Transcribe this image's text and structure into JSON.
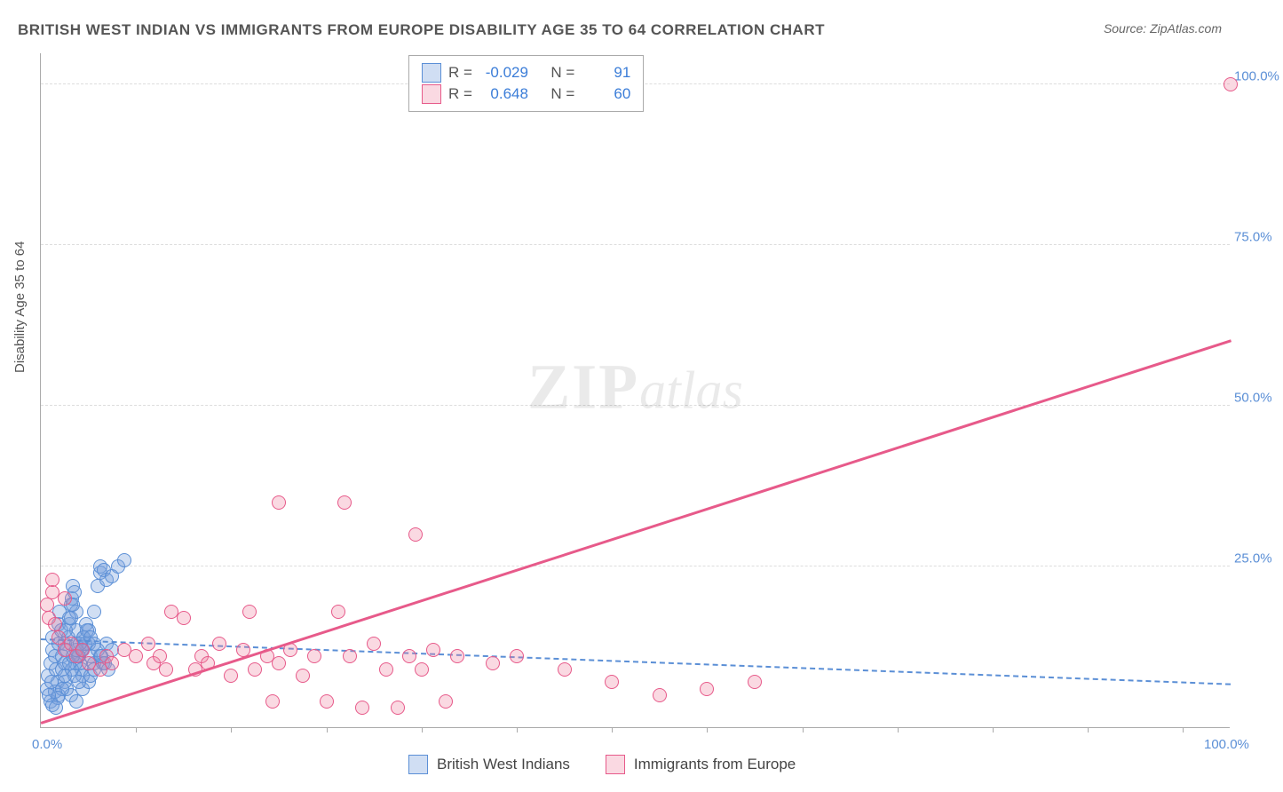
{
  "title": "BRITISH WEST INDIAN VS IMMIGRANTS FROM EUROPE DISABILITY AGE 35 TO 64 CORRELATION CHART",
  "source": "Source: ZipAtlas.com",
  "ylabel": "Disability Age 35 to 64",
  "watermark_zip": "ZIP",
  "watermark_atlas": "atlas",
  "chart": {
    "type": "scatter",
    "xlim": [
      0,
      100
    ],
    "ylim": [
      0,
      105
    ],
    "yticks": [
      {
        "v": 25,
        "label": "25.0%"
      },
      {
        "v": 50,
        "label": "50.0%"
      },
      {
        "v": 75,
        "label": "75.0%"
      },
      {
        "v": 100,
        "label": "100.0%"
      }
    ],
    "xticks": [
      {
        "v": 0,
        "label": "0.0%"
      },
      {
        "v": 100,
        "label": "100.0%"
      }
    ],
    "xminor": [
      8,
      16,
      24,
      32,
      40,
      48,
      56,
      64,
      72,
      80,
      88,
      96
    ],
    "grid_color": "#dddddd",
    "background": "#ffffff",
    "series": [
      {
        "name": "British West Indians",
        "color_fill": "rgba(120,160,220,0.35)",
        "color_stroke": "#5b8fd6",
        "marker_r": 8,
        "R": "-0.029",
        "N": "91",
        "regression": {
          "x1": 0,
          "y1": 13.5,
          "x2": 100,
          "y2": 6.5,
          "dashed": true,
          "color": "#5b8fd6"
        },
        "points": [
          [
            0.5,
            6
          ],
          [
            0.6,
            8
          ],
          [
            0.8,
            10
          ],
          [
            1,
            12
          ],
          [
            1,
            14
          ],
          [
            1.2,
            11
          ],
          [
            1.3,
            9
          ],
          [
            1.4,
            7
          ],
          [
            1.5,
            13
          ],
          [
            1.5,
            16
          ],
          [
            1.6,
            18
          ],
          [
            1.7,
            15
          ],
          [
            1.8,
            11
          ],
          [
            1.8,
            9
          ],
          [
            2,
            7
          ],
          [
            2,
            10
          ],
          [
            2,
            13
          ],
          [
            2.2,
            12
          ],
          [
            2.3,
            14
          ],
          [
            2.4,
            16
          ],
          [
            2.5,
            17
          ],
          [
            2.5,
            19
          ],
          [
            2.6,
            20
          ],
          [
            2.7,
            22
          ],
          [
            2.8,
            21
          ],
          [
            3,
            18
          ],
          [
            3,
            15
          ],
          [
            3,
            13
          ],
          [
            3.2,
            11
          ],
          [
            3.3,
            10
          ],
          [
            3.4,
            9
          ],
          [
            3.5,
            8
          ],
          [
            3.5,
            12
          ],
          [
            3.6,
            14
          ],
          [
            3.8,
            16
          ],
          [
            4,
            15
          ],
          [
            4,
            13
          ],
          [
            4.2,
            11
          ],
          [
            4.5,
            10
          ],
          [
            4.5,
            18
          ],
          [
            4.8,
            22
          ],
          [
            5,
            24
          ],
          [
            5,
            25
          ],
          [
            5.3,
            24.5
          ],
          [
            5.5,
            23
          ],
          [
            6,
            23.5
          ],
          [
            6.5,
            25
          ],
          [
            7,
            26
          ],
          [
            2.2,
            6
          ],
          [
            2.5,
            5
          ],
          [
            3,
            4
          ],
          [
            1.5,
            5
          ],
          [
            0.8,
            4
          ],
          [
            1.2,
            5.5
          ],
          [
            3.5,
            6
          ],
          [
            4,
            7
          ],
          [
            4.2,
            8
          ],
          [
            4.5,
            9
          ],
          [
            5,
            11
          ],
          [
            5.2,
            10
          ],
          [
            5.5,
            13
          ],
          [
            6,
            12
          ],
          [
            2.8,
            8
          ],
          [
            3.2,
            7
          ],
          [
            1.8,
            6
          ],
          [
            1.4,
            4.5
          ],
          [
            2,
            8
          ],
          [
            2.6,
            9
          ],
          [
            2.9,
            10
          ],
          [
            3.1,
            11
          ],
          [
            3.4,
            12
          ],
          [
            3.7,
            13
          ],
          [
            1,
            3.5
          ],
          [
            1.3,
            3
          ],
          [
            0.7,
            5
          ],
          [
            0.9,
            7
          ],
          [
            2.4,
            10
          ],
          [
            2.7,
            11
          ],
          [
            3,
            12
          ],
          [
            3.3,
            13
          ],
          [
            3.6,
            14
          ],
          [
            3.9,
            15
          ],
          [
            4.2,
            14
          ],
          [
            4.5,
            13
          ],
          [
            4.8,
            12
          ],
          [
            5.1,
            11
          ],
          [
            5.4,
            10
          ],
          [
            5.7,
            9
          ],
          [
            2.1,
            15
          ],
          [
            2.4,
            17
          ],
          [
            2.7,
            19
          ]
        ]
      },
      {
        "name": "Immigrants from Europe",
        "color_fill": "rgba(240,130,160,0.30)",
        "color_stroke": "#e75a8a",
        "marker_r": 8,
        "R": "0.648",
        "N": "60",
        "regression": {
          "x1": 0,
          "y1": 0.5,
          "x2": 100,
          "y2": 60,
          "dashed": false,
          "color": "#e75a8a"
        },
        "points": [
          [
            0.5,
            19
          ],
          [
            0.7,
            17
          ],
          [
            1,
            21
          ],
          [
            1.2,
            16
          ],
          [
            1.5,
            14
          ],
          [
            2,
            12
          ],
          [
            2.5,
            13
          ],
          [
            3,
            11
          ],
          [
            3.5,
            12
          ],
          [
            4,
            10
          ],
          [
            5,
            9
          ],
          [
            5.5,
            11
          ],
          [
            6,
            10
          ],
          [
            7,
            12
          ],
          [
            8,
            11
          ],
          [
            9,
            13
          ],
          [
            9.5,
            10
          ],
          [
            10,
            11
          ],
          [
            10.5,
            9
          ],
          [
            11,
            18
          ],
          [
            12,
            17
          ],
          [
            13,
            9
          ],
          [
            13.5,
            11
          ],
          [
            14,
            10
          ],
          [
            15,
            13
          ],
          [
            16,
            8
          ],
          [
            17,
            12
          ],
          [
            17.5,
            18
          ],
          [
            18,
            9
          ],
          [
            19,
            11
          ],
          [
            19.5,
            4
          ],
          [
            20,
            10
          ],
          [
            20,
            35
          ],
          [
            21,
            12
          ],
          [
            22,
            8
          ],
          [
            23,
            11
          ],
          [
            24,
            4
          ],
          [
            25,
            18
          ],
          [
            25.5,
            35
          ],
          [
            26,
            11
          ],
          [
            27,
            3
          ],
          [
            28,
            13
          ],
          [
            29,
            9
          ],
          [
            30,
            3
          ],
          [
            31,
            11
          ],
          [
            31.5,
            30
          ],
          [
            32,
            9
          ],
          [
            33,
            12
          ],
          [
            34,
            4
          ],
          [
            35,
            11
          ],
          [
            38,
            10
          ],
          [
            40,
            11
          ],
          [
            44,
            9
          ],
          [
            48,
            7
          ],
          [
            52,
            5
          ],
          [
            56,
            6
          ],
          [
            60,
            7
          ],
          [
            100,
            100
          ],
          [
            1,
            23
          ],
          [
            2,
            20
          ]
        ]
      }
    ]
  },
  "legend_bottom": [
    {
      "label": "British West Indians",
      "fill": "rgba(120,160,220,0.35)",
      "stroke": "#5b8fd6"
    },
    {
      "label": "Immigrants from Europe",
      "fill": "rgba(240,130,160,0.30)",
      "stroke": "#e75a8a"
    }
  ]
}
